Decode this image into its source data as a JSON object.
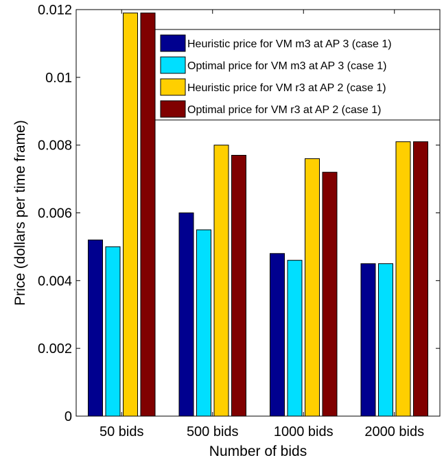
{
  "chart_data": {
    "type": "bar",
    "title": "",
    "xlabel": "Number of bids",
    "ylabel": "Price (dollars per time frame)",
    "ylim": [
      0,
      0.012
    ],
    "yticks": [
      "0",
      "0.002",
      "0.004",
      "0.006",
      "0.008",
      "0.01",
      "0.012"
    ],
    "ytick_values": [
      0,
      0.002,
      0.004,
      0.006,
      0.008,
      0.01,
      0.012
    ],
    "categories": [
      "50 bids",
      "500 bids",
      "1000 bids",
      "2000 bids"
    ],
    "grid": false,
    "legend_position": "top-right",
    "series": [
      {
        "name": "Heuristic price for VM m3 at AP 3 (case 1)",
        "color": "#00008f",
        "values": [
          0.0052,
          0.006,
          0.0048,
          0.0045
        ]
      },
      {
        "name": "Optimal price for VM m3 at AP 3 (case 1)",
        "color": "#00dfff",
        "values": [
          0.005,
          0.0055,
          0.0046,
          0.0045
        ]
      },
      {
        "name": "Heuristic price for VM r3 at AP 2 (case 1)",
        "color": "#ffcf00",
        "values": [
          0.0119,
          0.008,
          0.0076,
          0.0081
        ]
      },
      {
        "name": "Optimal price for VM r3 at AP 2 (case 1)",
        "color": "#800000",
        "values": [
          0.0119,
          0.0077,
          0.0072,
          0.0081
        ]
      }
    ]
  }
}
